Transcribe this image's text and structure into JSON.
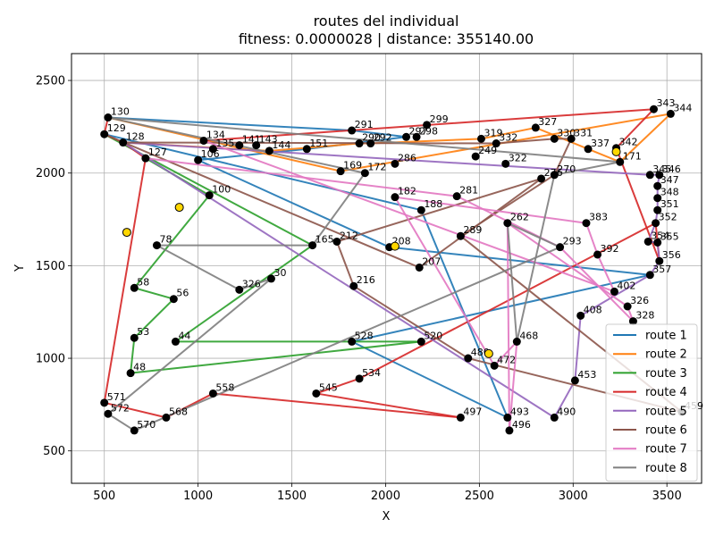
{
  "chart_data": {
    "type": "scatter",
    "title": "routes del individual",
    "subtitle": "fitness: 0.0000028 | distance: 355140.00",
    "xlabel": "X",
    "ylabel": "Y",
    "xlim": [
      325,
      3685
    ],
    "ylim": [
      325,
      2645
    ],
    "xticks": [
      500,
      1000,
      1500,
      2000,
      2500,
      3000,
      3500
    ],
    "yticks": [
      500,
      1000,
      1500,
      2000,
      2500
    ],
    "grid": true,
    "legend_position": "lower-right",
    "series": [
      {
        "name": "route 1",
        "color": "#1f77b4"
      },
      {
        "name": "route 2",
        "color": "#ff7f0e"
      },
      {
        "name": "route 3",
        "color": "#2ca02c"
      },
      {
        "name": "route 4",
        "color": "#d62728"
      },
      {
        "name": "route 5",
        "color": "#9467bd"
      },
      {
        "name": "route 6",
        "color": "#8c564b"
      },
      {
        "name": "route 7",
        "color": "#e377c2"
      },
      {
        "name": "route 8",
        "color": "#7f7f7f"
      }
    ],
    "depots": [
      {
        "x": 900,
        "y": 1815
      },
      {
        "x": 2050,
        "y": 1605
      },
      {
        "x": 3230,
        "y": 2115
      },
      {
        "x": 2550,
        "y": 1025
      },
      {
        "x": 620,
        "y": 1680
      }
    ],
    "points": [
      {
        "id": "130",
        "x": 520,
        "y": 2300
      },
      {
        "id": "129",
        "x": 500,
        "y": 2210
      },
      {
        "id": "128",
        "x": 600,
        "y": 2165
      },
      {
        "id": "127",
        "x": 720,
        "y": 2080
      },
      {
        "id": "134",
        "x": 1030,
        "y": 2175
      },
      {
        "id": "135",
        "x": 1080,
        "y": 2130
      },
      {
        "id": "141",
        "x": 1220,
        "y": 2150
      },
      {
        "id": "143",
        "x": 1310,
        "y": 2150
      },
      {
        "id": "144",
        "x": 1380,
        "y": 2120
      },
      {
        "id": "151",
        "x": 1580,
        "y": 2130
      },
      {
        "id": "291",
        "x": 1820,
        "y": 2230
      },
      {
        "id": "290",
        "x": 1860,
        "y": 2160
      },
      {
        "id": "292",
        "x": 1920,
        "y": 2160
      },
      {
        "id": "299",
        "x": 2220,
        "y": 2260
      },
      {
        "id": "297",
        "x": 2110,
        "y": 2195
      },
      {
        "id": "298",
        "x": 2165,
        "y": 2195
      },
      {
        "id": "319",
        "x": 2510,
        "y": 2185
      },
      {
        "id": "327",
        "x": 2800,
        "y": 2245
      },
      {
        "id": "330",
        "x": 2900,
        "y": 2185
      },
      {
        "id": "331",
        "x": 2990,
        "y": 2185
      },
      {
        "id": "332",
        "x": 2590,
        "y": 2160
      },
      {
        "id": "337",
        "x": 3080,
        "y": 2130
      },
      {
        "id": "342",
        "x": 3230,
        "y": 2135
      },
      {
        "id": "343",
        "x": 3430,
        "y": 2345
      },
      {
        "id": "344",
        "x": 3520,
        "y": 2320
      },
      {
        "id": "345",
        "x": 3410,
        "y": 1990
      },
      {
        "id": "346",
        "x": 3460,
        "y": 1990
      },
      {
        "id": "347",
        "x": 3450,
        "y": 1930
      },
      {
        "id": "348",
        "x": 3450,
        "y": 1865
      },
      {
        "id": "351",
        "x": 3450,
        "y": 1800
      },
      {
        "id": "352",
        "x": 3440,
        "y": 1730
      },
      {
        "id": "354",
        "x": 3400,
        "y": 1630
      },
      {
        "id": "355",
        "x": 3450,
        "y": 1625
      },
      {
        "id": "356",
        "x": 3460,
        "y": 1525
      },
      {
        "id": "357",
        "x": 3410,
        "y": 1450
      },
      {
        "id": "171",
        "x": 3250,
        "y": 2060
      },
      {
        "id": "270",
        "x": 2900,
        "y": 1990
      },
      {
        "id": "281",
        "x": 2380,
        "y": 1875
      },
      {
        "id": "289",
        "x": 2400,
        "y": 1660
      },
      {
        "id": "262",
        "x": 2650,
        "y": 1730
      },
      {
        "id": "293",
        "x": 2930,
        "y": 1600
      },
      {
        "id": "326",
        "x": 3290,
        "y": 1280
      },
      {
        "id": "328",
        "x": 3320,
        "y": 1200
      },
      {
        "id": "169",
        "x": 1760,
        "y": 2010
      },
      {
        "id": "172",
        "x": 1890,
        "y": 2000
      },
      {
        "id": "165",
        "x": 1610,
        "y": 1610
      },
      {
        "id": "106",
        "x": 1000,
        "y": 2070
      },
      {
        "id": "100",
        "x": 1060,
        "y": 1880
      },
      {
        "id": "78",
        "x": 780,
        "y": 1610
      },
      {
        "id": "58",
        "x": 660,
        "y": 1380
      },
      {
        "id": "56",
        "x": 870,
        "y": 1320
      },
      {
        "id": "53",
        "x": 660,
        "y": 1110
      },
      {
        "id": "48",
        "x": 640,
        "y": 920
      },
      {
        "id": "44",
        "x": 880,
        "y": 1090
      },
      {
        "id": "30",
        "x": 1390,
        "y": 1430
      },
      {
        "id": "326b",
        "x": 1220,
        "y": 1370
      },
      {
        "id": "571",
        "x": 500,
        "y": 760
      },
      {
        "id": "572",
        "x": 520,
        "y": 700
      },
      {
        "id": "570",
        "x": 660,
        "y": 610
      },
      {
        "id": "568",
        "x": 830,
        "y": 680
      },
      {
        "id": "558",
        "x": 1080,
        "y": 810
      },
      {
        "id": "545",
        "x": 1630,
        "y": 810
      },
      {
        "id": "534",
        "x": 1860,
        "y": 890
      },
      {
        "id": "528",
        "x": 1820,
        "y": 1090
      },
      {
        "id": "520",
        "x": 2190,
        "y": 1090
      },
      {
        "id": "497",
        "x": 2400,
        "y": 680
      },
      {
        "id": "496",
        "x": 2660,
        "y": 610
      },
      {
        "id": "493",
        "x": 2650,
        "y": 680
      },
      {
        "id": "490",
        "x": 2900,
        "y": 680
      },
      {
        "id": "453",
        "x": 3010,
        "y": 880
      },
      {
        "id": "459",
        "x": 3580,
        "y": 710
      },
      {
        "id": "480",
        "x": 2440,
        "y": 1000
      },
      {
        "id": "472",
        "x": 2580,
        "y": 960
      },
      {
        "id": "468",
        "x": 2700,
        "y": 1090
      },
      {
        "id": "408",
        "x": 3040,
        "y": 1230
      },
      {
        "id": "208",
        "x": 2020,
        "y": 1600
      },
      {
        "id": "212",
        "x": 1740,
        "y": 1630
      },
      {
        "id": "216",
        "x": 1830,
        "y": 1390
      },
      {
        "id": "188",
        "x": 2190,
        "y": 1800
      },
      {
        "id": "182",
        "x": 2050,
        "y": 1870
      },
      {
        "id": "207",
        "x": 2180,
        "y": 1490
      },
      {
        "id": "276",
        "x": 2830,
        "y": 1970
      },
      {
        "id": "383",
        "x": 3070,
        "y": 1730
      },
      {
        "id": "392",
        "x": 3130,
        "y": 1560
      },
      {
        "id": "402",
        "x": 3220,
        "y": 1360
      },
      {
        "id": "286",
        "x": 2050,
        "y": 2050
      },
      {
        "id": "249",
        "x": 2480,
        "y": 2090
      },
      {
        "id": "322",
        "x": 2640,
        "y": 2050
      }
    ],
    "routes": [
      {
        "series": 0,
        "path": [
          0,
          10,
          14,
          9,
          46,
          75,
          34,
          63,
          67,
          78,
          1
        ]
      },
      {
        "series": 1,
        "path": [
          2,
          8,
          11,
          12,
          16,
          17,
          21,
          35,
          24,
          43,
          0
        ]
      },
      {
        "series": 2,
        "path": [
          3,
          47,
          49,
          50,
          51,
          52,
          52,
          64,
          53,
          45,
          1
        ]
      },
      {
        "series": 3,
        "path": [
          0,
          1,
          2,
          3,
          56,
          59,
          60,
          65,
          61,
          62,
          30,
          33,
          22,
          23,
          4
        ]
      },
      {
        "series": 4,
        "path": [
          2,
          25,
          26,
          27,
          28,
          29,
          30,
          31,
          32,
          33,
          34,
          74,
          69,
          68,
          2
        ]
      },
      {
        "series": 5,
        "path": [
          1,
          80,
          81,
          76,
          77,
          71,
          70,
          38,
          36,
          19,
          18,
          20,
          2
        ]
      },
      {
        "series": 6,
        "path": [
          4,
          84,
          83,
          82,
          79,
          72,
          73,
          66,
          39,
          41,
          42,
          40,
          37,
          3
        ]
      },
      {
        "series": 7,
        "path": [
          0,
          44,
          45,
          48,
          55,
          54,
          57,
          58,
          40,
          39,
          73,
          36,
          35,
          0
        ]
      }
    ]
  }
}
